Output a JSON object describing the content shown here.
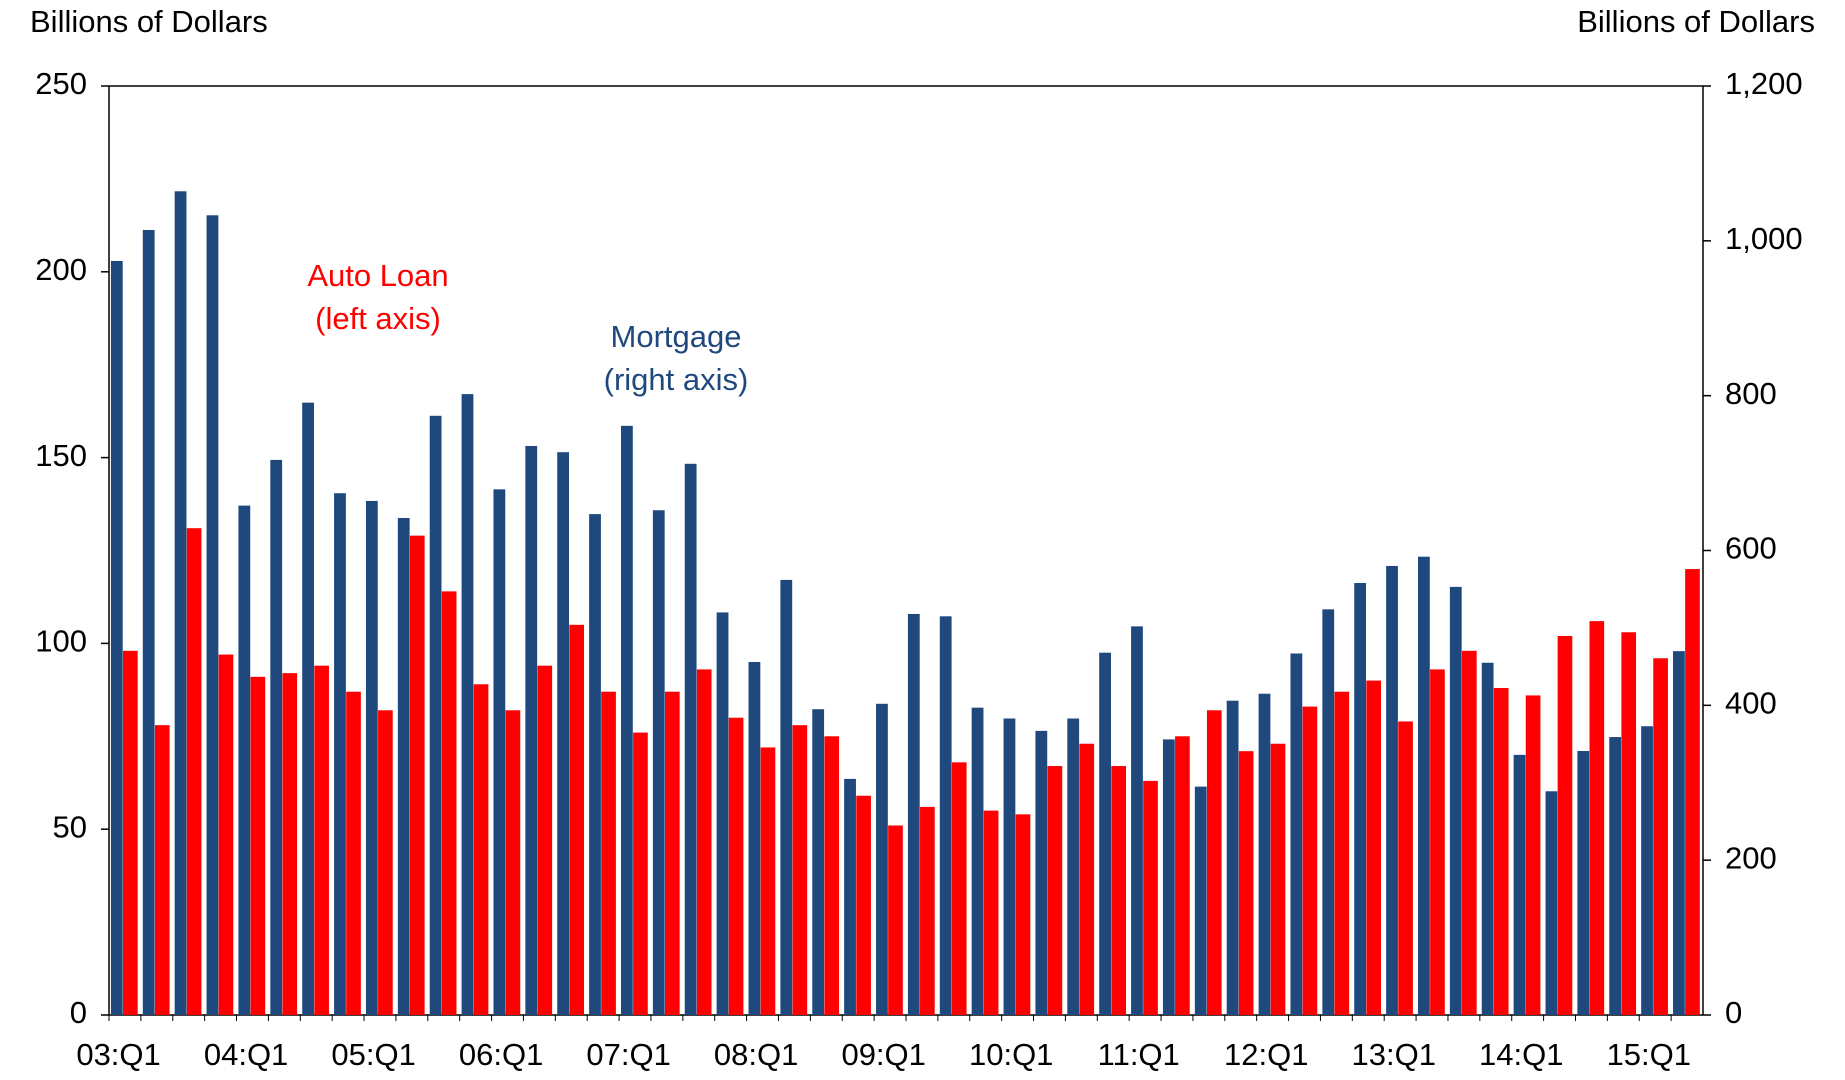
{
  "chart_data": {
    "type": "bar",
    "y_axis_label": "Billions of Dollars",
    "y2_axis_label": "Billions of Dollars",
    "annotations": [
      [
        "Auto Loan",
        "(left axis)"
      ],
      [
        "Mortgage",
        "(right axis)"
      ]
    ],
    "categories": [
      "03:Q1",
      null,
      null,
      null,
      "04:Q1",
      null,
      null,
      null,
      "05:Q1",
      null,
      null,
      null,
      "06:Q1",
      null,
      null,
      null,
      "07:Q1",
      null,
      null,
      null,
      "08:Q1",
      null,
      null,
      null,
      "09:Q1",
      null,
      null,
      null,
      "10:Q1",
      null,
      null,
      null,
      "11:Q1",
      null,
      null,
      null,
      "12:Q1",
      null,
      null,
      null,
      "13:Q1",
      null,
      null,
      null,
      "14:Q1",
      null,
      null,
      null,
      "15:Q1",
      null
    ],
    "series": [
      {
        "name": "Mortgage",
        "color": "#1f497d",
        "axis": "y2",
        "values": [
          974,
          1014,
          1064,
          1033,
          658,
          717,
          791,
          674,
          664,
          642,
          774,
          802,
          679,
          735,
          727,
          647,
          761,
          652,
          712,
          520,
          456,
          562,
          395,
          305,
          402,
          518,
          515,
          397,
          383,
          367,
          383,
          468,
          502,
          356,
          295,
          406,
          415,
          467,
          524,
          558,
          580,
          592,
          553,
          455,
          336,
          289,
          341,
          359,
          373,
          470
        ]
      },
      {
        "name": "Auto Loan",
        "color": "#ff0000",
        "values": [
          98,
          78,
          131,
          97,
          91,
          92,
          94,
          87,
          82,
          129,
          114,
          89,
          82,
          94,
          105,
          87,
          76,
          87,
          93,
          80,
          72,
          78,
          75,
          59,
          51,
          56,
          68,
          55,
          54,
          67,
          73,
          67,
          63,
          75,
          82,
          71,
          73,
          83,
          87,
          90,
          79,
          93,
          98,
          88,
          86,
          102,
          106,
          103,
          96,
          120
        ]
      }
    ],
    "ylim": [
      0,
      250
    ],
    "yticks": [
      0,
      50,
      100,
      150,
      200,
      250
    ],
    "y2lim": [
      0,
      1200
    ],
    "y2ticks": [
      0,
      200,
      400,
      600,
      800,
      {
        "value": 1000,
        "label": "1,000"
      },
      {
        "value": 1200,
        "label": "1,200"
      }
    ]
  }
}
